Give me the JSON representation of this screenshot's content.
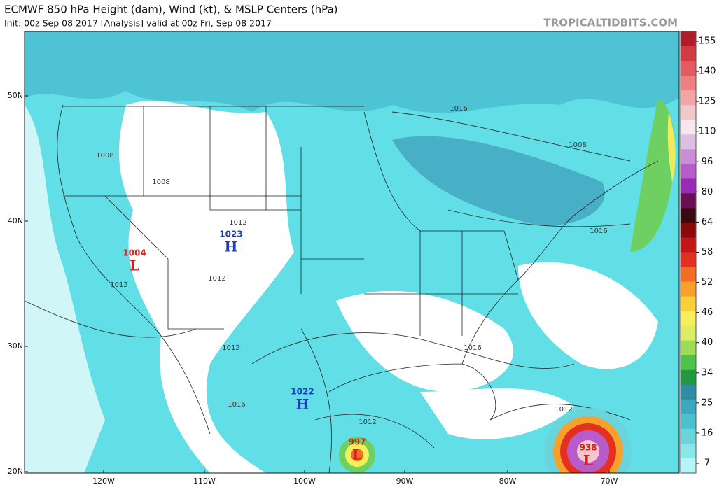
{
  "header": {
    "title": "ECMWF 850 hPa Height (dam), Wind (kt), & MSLP Centers (hPa)",
    "subtitle": "Init: 00z Sep 08 2017   [Analysis]   valid at 00z Fri, Sep 08 2017",
    "site": "TROPICALTIDBITS.COM"
  },
  "map": {
    "lat_labels": [
      "50N",
      "40N",
      "30N",
      "20N"
    ],
    "lon_labels": [
      "120W",
      "110W",
      "100W",
      "90W",
      "80W",
      "70W"
    ],
    "centers": [
      {
        "value": "1004",
        "symbol": "L"
      },
      {
        "value": "1023",
        "symbol": "H"
      },
      {
        "value": "1022",
        "symbol": "H"
      },
      {
        "value": "997",
        "symbol": "L"
      },
      {
        "value": "938",
        "symbol": "L"
      }
    ],
    "isobar_labels": [
      "1016",
      "1008",
      "1008",
      "1012",
      "1012",
      "1012",
      "1008",
      "1016",
      "1012",
      "1016",
      "1016",
      "1012",
      "1012"
    ]
  },
  "colorbar": {
    "labels": [
      "155",
      "140",
      "125",
      "110",
      "96",
      "80",
      "64",
      "58",
      "52",
      "46",
      "40",
      "34",
      "25",
      "16",
      "7"
    ],
    "colors": [
      "#b01c2a",
      "#d23a44",
      "#e25a62",
      "#ee7e82",
      "#f4a4a6",
      "#f2c8cc",
      "#f6e6ee",
      "#ddbfe2",
      "#c98ed6",
      "#b85ccc",
      "#9a2ab8",
      "#6a0f52",
      "#3a0a10",
      "#8a0a0a",
      "#c41616",
      "#e43020",
      "#f26e22",
      "#f7a12a",
      "#fad03a",
      "#f6ef5a",
      "#d9ee64",
      "#9edc56",
      "#4fc24a",
      "#1f9a3e",
      "#2e8ca6",
      "#3aa9c0",
      "#4cc0cf",
      "#6ad4dd",
      "#8be6ea",
      "#b6f4f6"
    ]
  }
}
